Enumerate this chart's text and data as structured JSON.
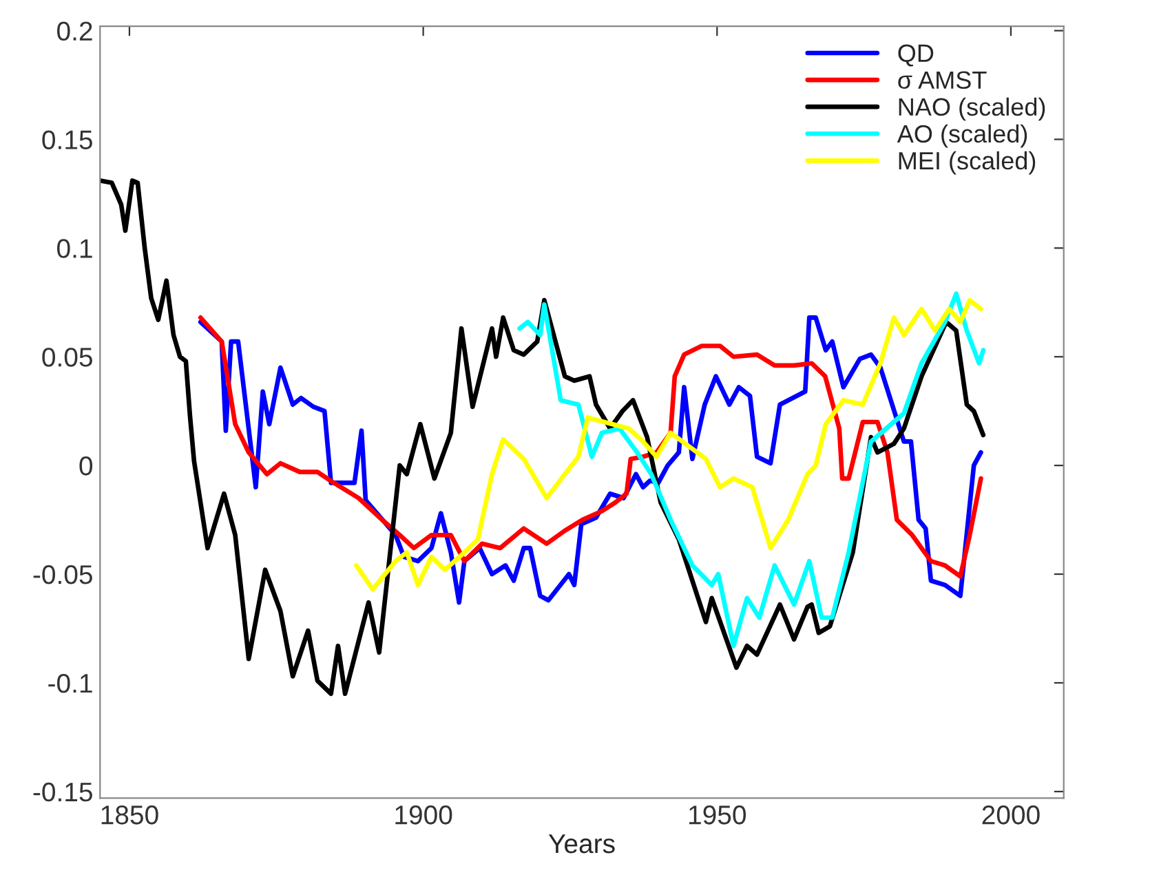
{
  "chart_data": {
    "type": "line",
    "xlabel": "Years",
    "xlim": [
      1845,
      2009
    ],
    "ylim": [
      -0.153,
      0.202
    ],
    "xticks": [
      1850,
      1900,
      1950,
      2000
    ],
    "yticks": [
      -0.15,
      -0.1,
      -0.05,
      0,
      0.05,
      0.1,
      0.15,
      0.2
    ],
    "grid": false,
    "legend": "top right",
    "line_style": "solid",
    "marker": "none",
    "series": [
      {
        "name": "QD",
        "color": "#0000ff",
        "x": [
          1862.1,
          1865.7,
          1866.4,
          1867.3,
          1868.5,
          1871.5,
          1872.7,
          1873.8,
          1875.7,
          1877.8,
          1879.2,
          1881.3,
          1883.2,
          1884.3,
          1888.3,
          1889.5,
          1890.2,
          1895.3,
          1896.7,
          1899.1,
          1901.4,
          1903,
          1904.7,
          1906.1,
          1907,
          1909.6,
          1911.7,
          1914,
          1915.4,
          1917.1,
          1918.2,
          1919.9,
          1921.3,
          1924.8,
          1925.7,
          1926.9,
          1929.4,
          1931.8,
          1934.1,
          1936.2,
          1937.4,
          1938.6,
          1940,
          1941.6,
          1943.5,
          1944.4,
          1945.8,
          1947.9,
          1949.8,
          1952.1,
          1953.7,
          1955.6,
          1956.8,
          1959.1,
          1960.7,
          1965,
          1965.7,
          1966.8,
          1968.5,
          1969.6,
          1971.5,
          1974.3,
          1976.2,
          1977.8,
          1981.8,
          1983,
          1984.3,
          1985.5,
          1986.4,
          1988.8,
          1991.4,
          1993.7,
          1994.9
        ],
        "values": [
          0.066,
          0.057,
          0.016,
          0.057,
          0.057,
          -0.01,
          0.034,
          0.019,
          0.045,
          0.028,
          0.031,
          0.027,
          0.025,
          -0.008,
          -0.008,
          0.016,
          -0.016,
          -0.032,
          -0.042,
          -0.044,
          -0.038,
          -0.022,
          -0.04,
          -0.063,
          -0.044,
          -0.038,
          -0.05,
          -0.046,
          -0.053,
          -0.038,
          -0.038,
          -0.06,
          -0.062,
          -0.05,
          -0.055,
          -0.027,
          -0.024,
          -0.013,
          -0.015,
          -0.004,
          -0.01,
          -0.007,
          -0.008,
          0.0,
          0.006,
          0.036,
          0.003,
          0.028,
          0.041,
          0.028,
          0.036,
          0.032,
          0.004,
          0.001,
          0.028,
          0.034,
          0.068,
          0.068,
          0.053,
          0.057,
          0.036,
          0.049,
          0.051,
          0.045,
          0.011,
          0.011,
          -0.025,
          -0.029,
          -0.053,
          -0.055,
          -0.06,
          0.0,
          0.006
        ]
      },
      {
        "name": "σ AMST",
        "color": "#ff0000",
        "x": [
          1862.1,
          1865.7,
          1868,
          1870.3,
          1873.4,
          1875.7,
          1879,
          1882,
          1884.8,
          1889,
          1893,
          1896,
          1898.4,
          1901.4,
          1904.7,
          1907,
          1910,
          1913.1,
          1917.1,
          1921,
          1924.1,
          1927.1,
          1930.4,
          1932.7,
          1934.6,
          1935.3,
          1937.4,
          1939.7,
          1942.1,
          1942.8,
          1944.4,
          1947.4,
          1950.5,
          1952.8,
          1956.8,
          1959.8,
          1963.1,
          1966.1,
          1968.4,
          1970.8,
          1971.3,
          1972.4,
          1974.8,
          1977.3,
          1979,
          1980.6,
          1983.2,
          1986.4,
          1988.8,
          1991.4,
          1993,
          1994.9
        ],
        "values": [
          0.068,
          0.057,
          0.019,
          0.006,
          -0.004,
          0.001,
          -0.003,
          -0.003,
          -0.008,
          -0.015,
          -0.025,
          -0.032,
          -0.038,
          -0.032,
          -0.032,
          -0.044,
          -0.036,
          -0.038,
          -0.029,
          -0.036,
          -0.03,
          -0.025,
          -0.021,
          -0.017,
          -0.013,
          0.003,
          0.004,
          0.006,
          0.015,
          0.041,
          0.051,
          0.055,
          0.055,
          0.05,
          0.051,
          0.046,
          0.046,
          0.047,
          0.041,
          0.017,
          -0.006,
          -0.006,
          0.02,
          0.02,
          0.006,
          -0.025,
          -0.032,
          -0.044,
          -0.046,
          -0.051,
          -0.032,
          -0.006
        ]
      },
      {
        "name": "NAO (scaled)",
        "color": "#000000",
        "x": [
          1845.1,
          1847,
          1848.6,
          1849.3,
          1850.5,
          1851.4,
          1852.6,
          1853.7,
          1854.9,
          1856.3,
          1857.5,
          1858.6,
          1859.6,
          1860.3,
          1861,
          1863.3,
          1866.1,
          1868,
          1870.3,
          1873.1,
          1875.7,
          1877.8,
          1880.4,
          1882,
          1884.3,
          1885.5,
          1886.7,
          1890.7,
          1892.5,
          1896,
          1897.2,
          1899.5,
          1901.9,
          1904.7,
          1906.5,
          1908.4,
          1911.7,
          1912.4,
          1913.6,
          1915.4,
          1917.1,
          1919.4,
          1920.6,
          1924.1,
          1925.7,
          1928.3,
          1929.4,
          1931.8,
          1933.9,
          1935.7,
          1938.1,
          1940.4,
          1943.5,
          1948.1,
          1949.1,
          1953.3,
          1955.1,
          1956.8,
          1960.7,
          1963.1,
          1965.4,
          1966.1,
          1967.3,
          1969.2,
          1973.1,
          1976.2,
          1977.3,
          1980.1,
          1981.8,
          1984.8,
          1989,
          1990.7,
          1992.5,
          1993.7,
          1995.3
        ],
        "values": [
          0.131,
          0.13,
          0.12,
          0.108,
          0.131,
          0.13,
          0.1,
          0.077,
          0.067,
          0.085,
          0.06,
          0.05,
          0.048,
          0.023,
          0.002,
          -0.038,
          -0.013,
          -0.032,
          -0.089,
          -0.048,
          -0.067,
          -0.097,
          -0.076,
          -0.099,
          -0.105,
          -0.083,
          -0.105,
          -0.063,
          -0.086,
          0.0,
          -0.004,
          0.019,
          -0.006,
          0.015,
          0.063,
          0.027,
          0.063,
          0.05,
          0.068,
          0.053,
          0.051,
          0.057,
          0.076,
          0.041,
          0.039,
          0.041,
          0.028,
          0.017,
          0.025,
          0.03,
          0.013,
          -0.017,
          -0.034,
          -0.072,
          -0.061,
          -0.093,
          -0.083,
          -0.087,
          -0.064,
          -0.08,
          -0.065,
          -0.064,
          -0.077,
          -0.074,
          -0.04,
          0.013,
          0.006,
          0.01,
          0.017,
          0.041,
          0.066,
          0.062,
          0.028,
          0.025,
          0.014
        ]
      },
      {
        "name": "AO (scaled)",
        "color": "#00ffff",
        "x": [
          1916.4,
          1917.8,
          1919.9,
          1920.6,
          1923.4,
          1926.4,
          1928.7,
          1930.4,
          1933.4,
          1936.4,
          1938.8,
          1942.1,
          1945.8,
          1949.1,
          1950.2,
          1952.8,
          1955.1,
          1957.2,
          1959.8,
          1963.1,
          1965.7,
          1967.8,
          1969.6,
          1972.4,
          1976.2,
          1981.8,
          1984.8,
          1988.8,
          1990.7,
          1992.5,
          1994.6,
          1995.3
        ],
        "values": [
          0.063,
          0.066,
          0.06,
          0.074,
          0.03,
          0.028,
          0.004,
          0.015,
          0.017,
          0.006,
          -0.004,
          -0.025,
          -0.046,
          -0.055,
          -0.05,
          -0.083,
          -0.061,
          -0.07,
          -0.046,
          -0.064,
          -0.044,
          -0.07,
          -0.07,
          -0.04,
          0.011,
          0.024,
          0.047,
          0.066,
          0.079,
          0.062,
          0.047,
          0.053
        ]
      },
      {
        "name": "MEI (scaled)",
        "color": "#ffff00",
        "x": [
          1888.6,
          1891.4,
          1895.3,
          1897.2,
          1899.1,
          1901.4,
          1903.7,
          1907,
          1909.3,
          1911.7,
          1913.6,
          1917.1,
          1921,
          1924.1,
          1926.4,
          1928,
          1935,
          1937.4,
          1939.7,
          1942.1,
          1948.1,
          1950.5,
          1952.8,
          1956,
          1959.1,
          1962.1,
          1965.4,
          1966.8,
          1968.5,
          1971.5,
          1974.8,
          1977.8,
          1980.1,
          1981.8,
          1984.8,
          1987.1,
          1989.5,
          1991.4,
          1993,
          1994.9
        ],
        "values": [
          -0.046,
          -0.057,
          -0.044,
          -0.04,
          -0.055,
          -0.042,
          -0.048,
          -0.04,
          -0.034,
          -0.004,
          0.012,
          0.003,
          -0.015,
          -0.004,
          0.004,
          0.022,
          0.017,
          0.011,
          0.004,
          0.015,
          0.003,
          -0.01,
          -0.006,
          -0.01,
          -0.038,
          -0.025,
          -0.004,
          0.0,
          0.019,
          0.03,
          0.028,
          0.047,
          0.068,
          0.06,
          0.072,
          0.062,
          0.072,
          0.066,
          0.076,
          0.072
        ]
      }
    ]
  }
}
